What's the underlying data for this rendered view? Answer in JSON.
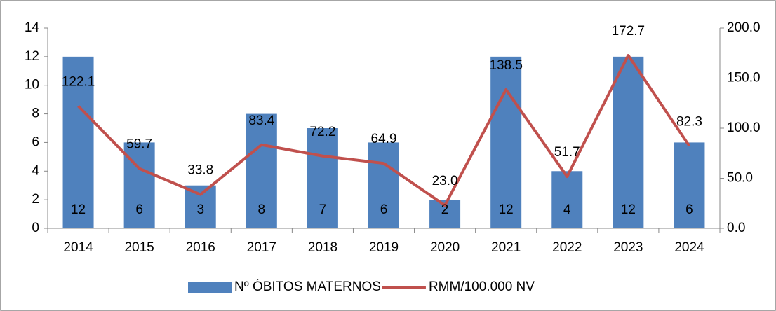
{
  "chart_data": {
    "type": "bar",
    "categories": [
      "2014",
      "2015",
      "2016",
      "2017",
      "2018",
      "2019",
      "2020",
      "2021",
      "2022",
      "2023",
      "2024"
    ],
    "series": [
      {
        "name": "Nº ÓBITOS MATERNOS",
        "type": "bar",
        "color": "#4f81bd",
        "values": [
          12,
          6,
          3,
          8,
          7,
          6,
          2,
          12,
          4,
          12,
          6
        ]
      },
      {
        "name": "RMM/100.000 NV",
        "type": "line",
        "axis": "y2",
        "color": "#c0504d",
        "values": [
          122.1,
          59.7,
          33.8,
          83.4,
          72.2,
          64.9,
          23.0,
          138.5,
          51.7,
          172.7,
          82.3
        ],
        "value_labels": [
          "122.1",
          "59.7",
          "33.8",
          "83.4",
          "72.2",
          "64.9",
          "23.0",
          "138.5",
          "51.7",
          "172.7",
          "82.3"
        ]
      }
    ],
    "ylim": [
      0,
      14
    ],
    "yticks": [
      0,
      2,
      4,
      6,
      8,
      10,
      12,
      14
    ],
    "y2lim": [
      0,
      200
    ],
    "y2ticks": [
      {
        "value": 0,
        "label": "0.0"
      },
      {
        "value": 50,
        "label": "50.0"
      },
      {
        "value": 100,
        "label": "100.0"
      },
      {
        "value": 150,
        "label": "150.0"
      },
      {
        "value": 200,
        "label": "200.0"
      }
    ],
    "legend": "bottom"
  }
}
